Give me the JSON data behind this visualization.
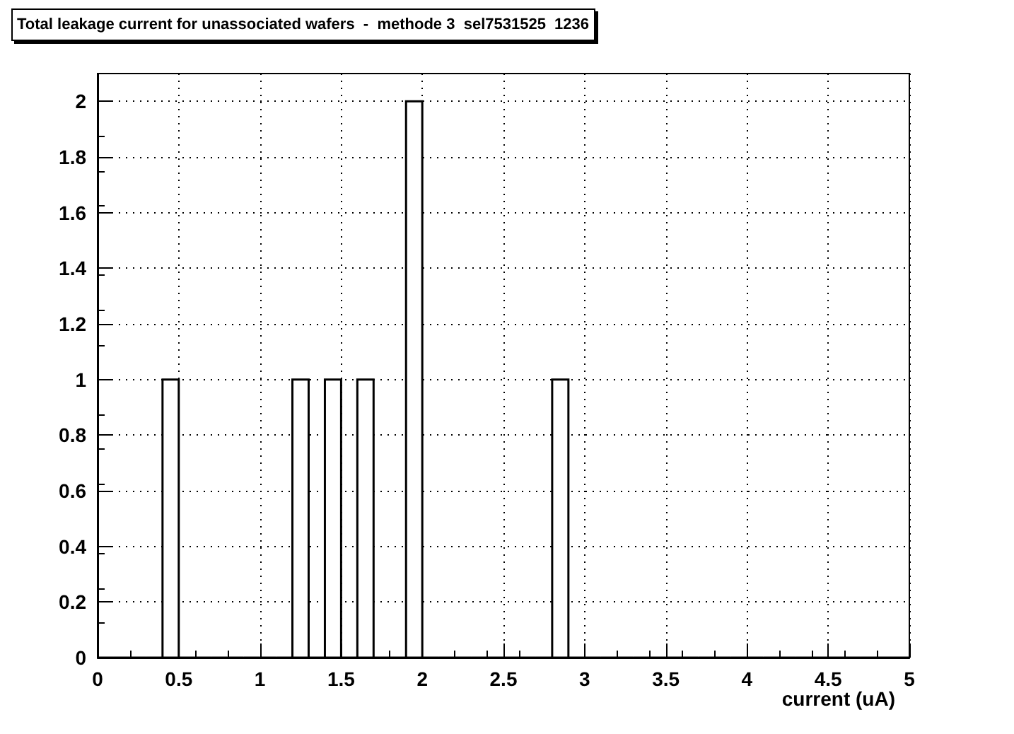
{
  "chart_data": {
    "type": "histogram",
    "title": "Total leakage current for unassociated wafers  -  methode 3  sel7531525  1236",
    "xlabel": "current (uA)",
    "bins": [
      0,
      0.1,
      0.2,
      0.3,
      0.4,
      0.5,
      0.6,
      0.7,
      0.8,
      0.9,
      1,
      1.1,
      1.2,
      1.3,
      1.4,
      1.5,
      1.6,
      1.7,
      1.8,
      1.9,
      2,
      2.1,
      2.2,
      2.3,
      2.4,
      2.5,
      2.6,
      2.7,
      2.8,
      2.9,
      3,
      3.1,
      3.2,
      3.3,
      3.4,
      3.5,
      3.6,
      3.7,
      3.8,
      3.9,
      4,
      4.1,
      4.2,
      4.3,
      4.4,
      4.5,
      4.6,
      4.7,
      4.8,
      4.9,
      5
    ],
    "values": [
      0,
      0,
      0,
      0,
      1,
      0,
      0,
      0,
      0,
      0,
      0,
      0,
      1,
      0,
      1,
      0,
      1,
      0,
      0,
      2,
      0,
      0,
      0,
      0,
      0,
      0,
      0,
      0,
      1,
      0,
      0,
      0,
      0,
      0,
      0,
      0,
      0,
      0,
      0,
      0,
      0,
      0,
      0,
      0,
      0,
      0,
      0,
      0,
      0,
      0
    ],
    "color": "#000000",
    "xlim": [
      0,
      5
    ],
    "xticks": [
      0,
      0.5,
      1,
      1.5,
      2,
      2.5,
      3,
      3.5,
      4,
      4.5,
      5
    ],
    "ylim": [
      0,
      2.1
    ],
    "yticks": [
      0,
      0.2,
      0.4,
      0.6,
      0.8,
      1,
      1.2,
      1.4,
      1.6,
      1.8,
      2
    ],
    "grid": true
  }
}
